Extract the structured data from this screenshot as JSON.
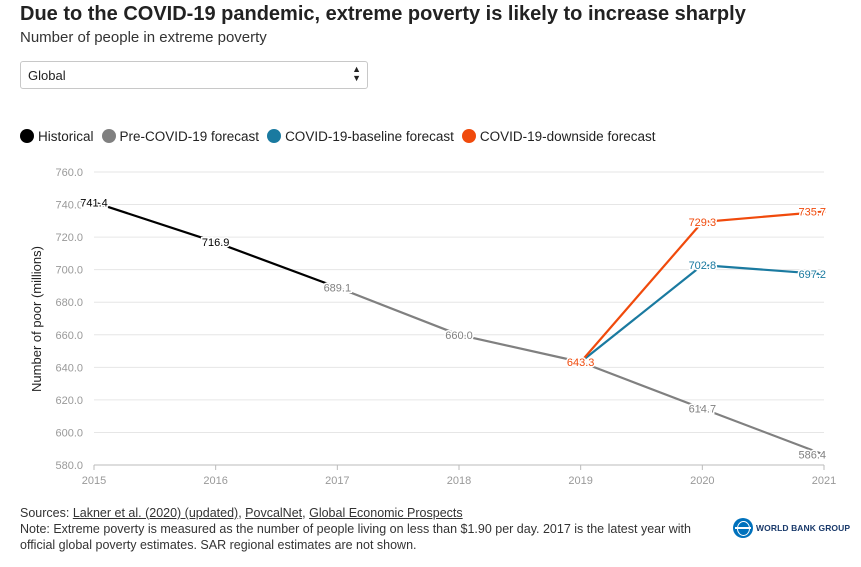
{
  "header": {
    "title": "Due to the COVID-19 pandemic, extreme poverty is likely to increase sharply",
    "subtitle": "Number of people in extreme poverty"
  },
  "selector": {
    "value": "Global",
    "arrow": "▲\n▼"
  },
  "legend": {
    "items": [
      {
        "label": "Historical",
        "color": "#000000"
      },
      {
        "label": "Pre-COVID-19 forecast",
        "color": "#808080"
      },
      {
        "label": "COVID-19-baseline forecast",
        "color": "#1a7aa0"
      },
      {
        "label": "COVID-19-downside forecast",
        "color": "#f04a0c"
      }
    ]
  },
  "chart_data": {
    "type": "line",
    "ylabel": "Number of poor (millions)",
    "xlabel": "",
    "xlim": [
      2015,
      2021
    ],
    "ylim": [
      580,
      760
    ],
    "yticks": [
      "580.0",
      "600.0",
      "620.0",
      "640.0",
      "660.0",
      "680.0",
      "700.0",
      "720.0",
      "740.0",
      "760.0"
    ],
    "xticks": [
      "2015",
      "2016",
      "2017",
      "2018",
      "2019",
      "2020",
      "2021"
    ],
    "grid": true,
    "series": [
      {
        "name": "Historical",
        "color": "#000000",
        "points": [
          {
            "x": 2015,
            "y": 741.4,
            "label": "741.4"
          },
          {
            "x": 2016,
            "y": 716.9,
            "label": "716.9"
          },
          {
            "x": 2017,
            "y": 689.1,
            "label": ""
          }
        ]
      },
      {
        "name": "Pre-COVID-19 forecast",
        "color": "#808080",
        "points": [
          {
            "x": 2017,
            "y": 689.1,
            "label": "689.1"
          },
          {
            "x": 2018,
            "y": 660.0,
            "label": "660.0"
          },
          {
            "x": 2019,
            "y": 643.3,
            "label": ""
          },
          {
            "x": 2020,
            "y": 614.7,
            "label": "614.7"
          },
          {
            "x": 2021,
            "y": 586.4,
            "label": "586.4"
          }
        ]
      },
      {
        "name": "COVID-19-baseline forecast",
        "color": "#1a7aa0",
        "points": [
          {
            "x": 2019,
            "y": 643.3,
            "label": ""
          },
          {
            "x": 2020,
            "y": 702.8,
            "label": "702.8"
          },
          {
            "x": 2021,
            "y": 697.2,
            "label": "697.2"
          }
        ]
      },
      {
        "name": "COVID-19-downside forecast",
        "color": "#f04a0c",
        "points": [
          {
            "x": 2019,
            "y": 643.3,
            "label": "643.3"
          },
          {
            "x": 2020,
            "y": 729.3,
            "label": "729.3"
          },
          {
            "x": 2021,
            "y": 735.7,
            "label": "735.7"
          }
        ]
      }
    ]
  },
  "footer": {
    "sources_prefix": "Sources: ",
    "sources": [
      "Lakner et al. (2020) (updated)",
      "PovcalNet",
      "Global Economic Prospects"
    ],
    "separator": ", ",
    "note": "Note: Extreme poverty is measured as the number of people living on less than $1.90 per day. 2017 is the latest year with official global poverty estimates. SAR regional estimates are not shown."
  },
  "logo": {
    "name": "WORLD BANK GROUP"
  }
}
